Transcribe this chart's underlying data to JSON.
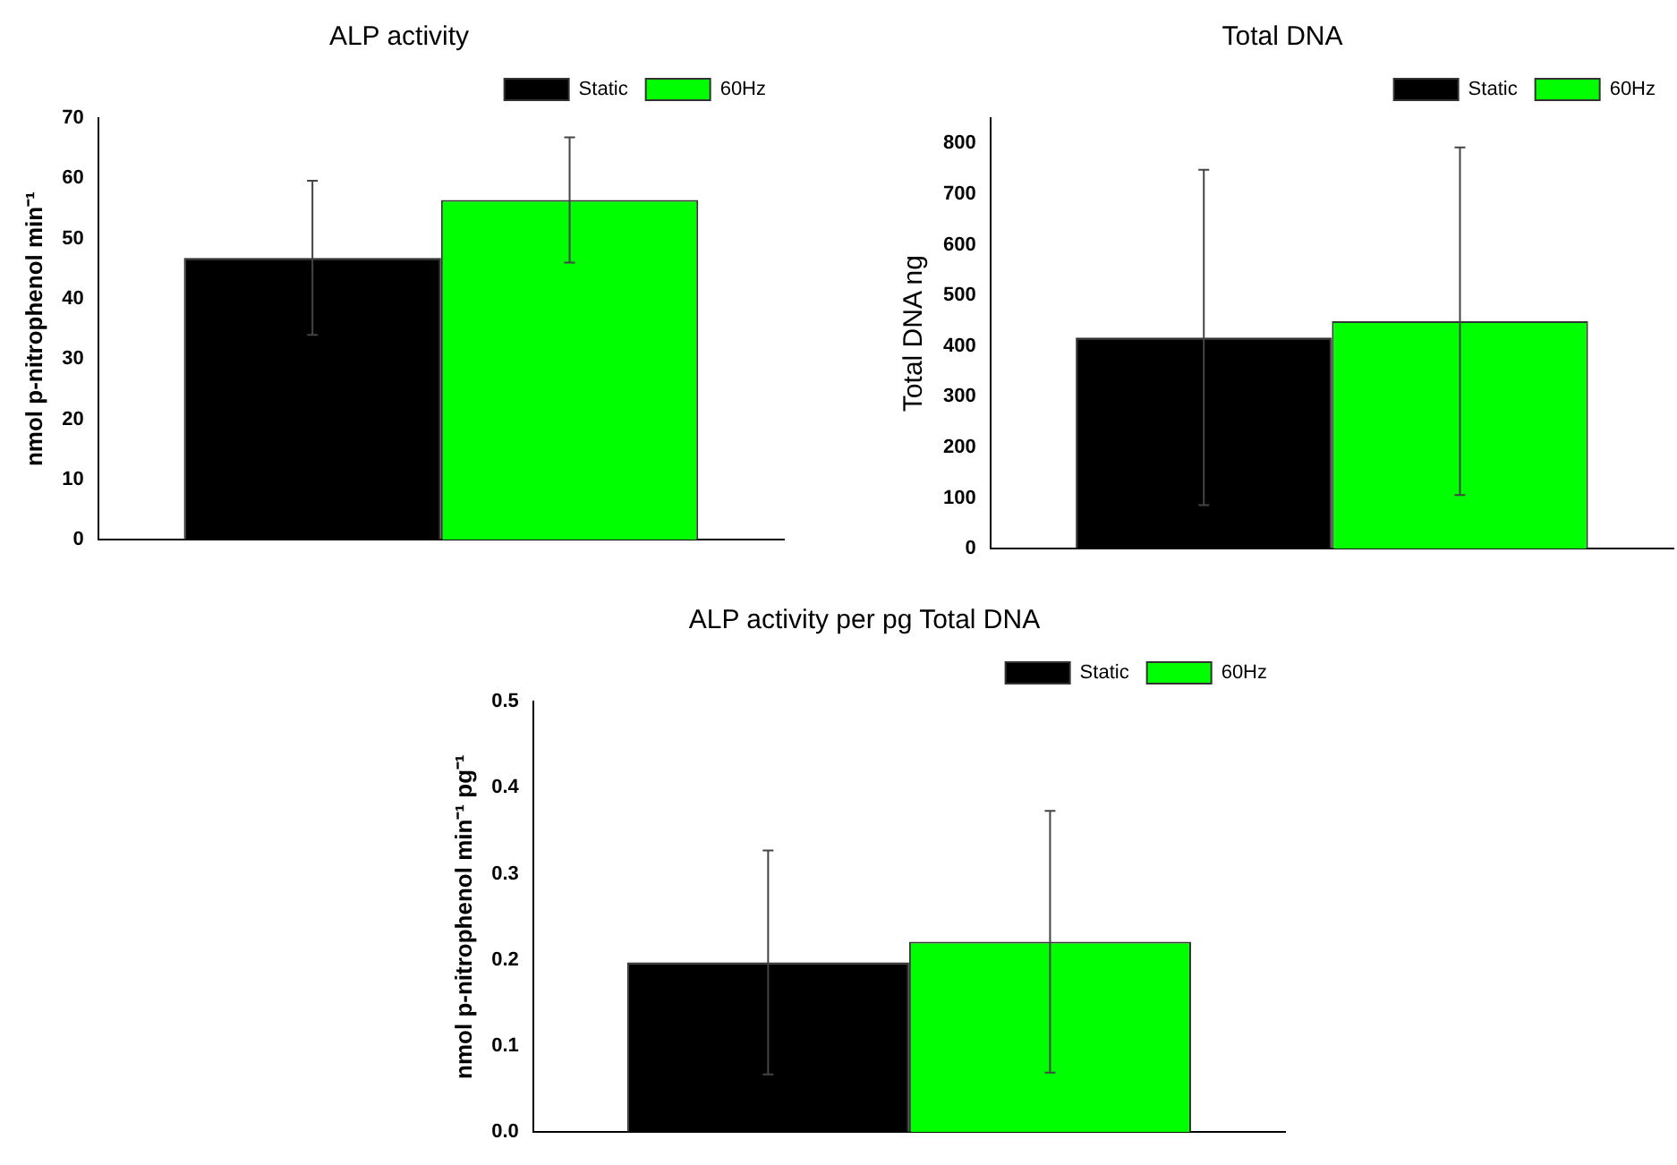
{
  "chart_data": [
    {
      "type": "bar",
      "title": "ALP activity",
      "ylabel": "nmol p-nitrophenol min⁻¹",
      "categories": [
        null
      ],
      "series": [
        {
          "name": "Static",
          "color": "#000000",
          "values": [
            46.8
          ],
          "errors": [
            12.8
          ]
        },
        {
          "name": "60Hz",
          "color": "#00ff00",
          "values": [
            56.4
          ],
          "errors": [
            10.4
          ]
        }
      ],
      "ylim": [
        0,
        70
      ],
      "yticks": [
        0,
        10,
        20,
        30,
        40,
        50,
        60,
        70
      ],
      "legend": "top right"
    },
    {
      "type": "bar",
      "title": "Total DNA",
      "ylabel": "Total DNA ng",
      "categories": [
        null
      ],
      "series": [
        {
          "name": "Static",
          "color": "#000000",
          "values": [
            417
          ],
          "errors": [
            331
          ]
        },
        {
          "name": "60Hz",
          "color": "#00ff00",
          "values": [
            449
          ],
          "errors": [
            343
          ]
        }
      ],
      "ylim": [
        0,
        850
      ],
      "yticks": [
        0,
        100,
        200,
        300,
        400,
        500,
        600,
        700,
        800
      ],
      "legend": "top right"
    },
    {
      "type": "bar",
      "title": "ALP activity per pg Total DNA",
      "ylabel": "nmol p-nitrophenol min⁻¹ pg⁻¹",
      "categories": [
        null
      ],
      "series": [
        {
          "name": "Static",
          "color": "#000000",
          "values": [
            0.197
          ],
          "errors": [
            0.13
          ]
        },
        {
          "name": "60Hz",
          "color": "#00ff00",
          "values": [
            0.221
          ],
          "errors": [
            0.152
          ]
        }
      ],
      "ylim": [
        0,
        0.5
      ],
      "yticks": [
        {
          "value": 0,
          "label": "0.0"
        },
        0.1,
        0.2,
        0.3,
        0.4,
        0.5
      ],
      "legend": "top right"
    }
  ]
}
